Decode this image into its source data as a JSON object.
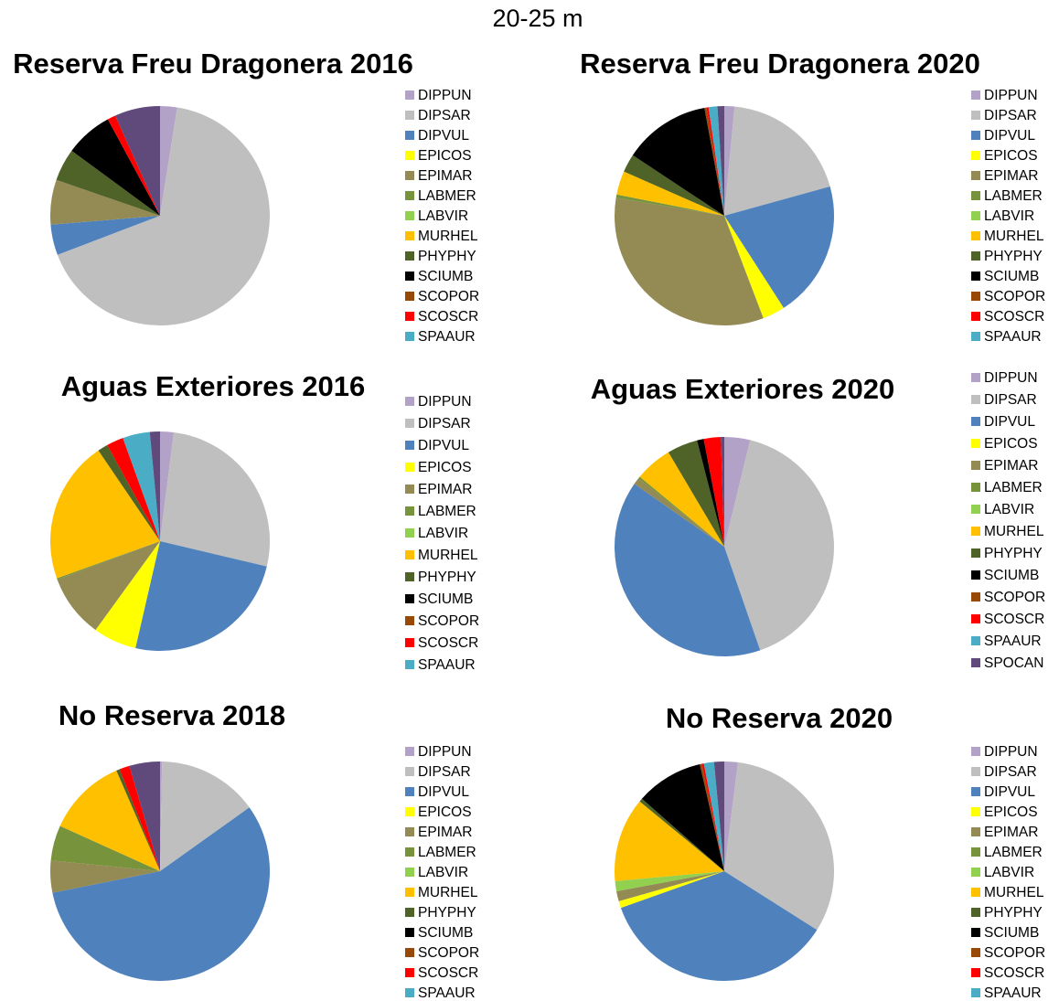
{
  "title": "20-25 m",
  "chart_data": [
    {
      "type": "pie",
      "title": "Reserva Freu Dragonera 2016",
      "categories": [
        "DIPPUN",
        "DIPSAR",
        "DIPVUL",
        "EPICOS",
        "EPIMAR",
        "LABMER",
        "LABVIR",
        "MURHEL",
        "PHYPHY",
        "SCIUMB",
        "SCOPOR",
        "SCOSCR",
        "SPAAUR",
        null
      ],
      "values": [
        2.5,
        66.7,
        4.5,
        0,
        6.6,
        0,
        0,
        0,
        4.8,
        7,
        0,
        1.2,
        0,
        6.7
      ],
      "colors": [
        "#b3a2c7",
        "#bfbfbf",
        "#4f81bd",
        "#ffff00",
        "#948a54",
        "#77933c",
        "#92d050",
        "#ffc000",
        "#4f6228",
        "#000000",
        "#984807",
        "#ff0000",
        "#4bacc6",
        "#604a7b"
      ]
    },
    {
      "type": "pie",
      "title": "Reserva Freu Dragonera 2020",
      "categories": [
        "DIPPUN",
        "DIPSAR",
        "DIPVUL",
        "EPICOS",
        "EPIMAR",
        "LABMER",
        "LABVIR",
        "MURHEL",
        "PHYPHY",
        "SCIUMB",
        "SCOPOR",
        "SCOSCR",
        "SPAAUR",
        null
      ],
      "values": [
        1.5,
        19.2,
        20.2,
        3.3,
        33.4,
        0.5,
        0,
        3.5,
        2.7,
        12.8,
        0.3,
        0.3,
        1.3,
        1
      ],
      "colors": [
        "#b3a2c7",
        "#bfbfbf",
        "#4f81bd",
        "#ffff00",
        "#948a54",
        "#77933c",
        "#92d050",
        "#ffc000",
        "#4f6228",
        "#000000",
        "#984807",
        "#ff0000",
        "#4bacc6",
        "#604a7b"
      ]
    },
    {
      "type": "pie",
      "title": "Aguas Exteriores 2016",
      "categories": [
        "DIPPUN",
        "DIPSAR",
        "DIPVUL",
        "EPICOS",
        "EPIMAR",
        "LABMER",
        "LABVIR",
        "MURHEL",
        "PHYPHY",
        "SCIUMB",
        "SCOPOR",
        "SCOSCR",
        "SPAAUR",
        null
      ],
      "values": [
        2,
        26.7,
        24.9,
        6.4,
        9.3,
        0.2,
        0,
        21,
        1.5,
        0,
        0,
        2.5,
        4,
        1.5
      ],
      "colors": [
        "#b3a2c7",
        "#bfbfbf",
        "#4f81bd",
        "#ffff00",
        "#948a54",
        "#77933c",
        "#92d050",
        "#ffc000",
        "#4f6228",
        "#000000",
        "#984807",
        "#ff0000",
        "#4bacc6",
        "#604a7b"
      ]
    },
    {
      "type": "pie",
      "title": "Aguas Exteriores 2020",
      "categories": [
        "DIPPUN",
        "DIPSAR",
        "DIPVUL",
        "EPICOS",
        "EPIMAR",
        "LABMER",
        "LABVIR",
        "MURHEL",
        "PHYPHY",
        "SCIUMB",
        "SCOPOR",
        "SCOSCR",
        "SPAAUR",
        "SPOCAN"
      ],
      "values": [
        3.8,
        40.9,
        40,
        0,
        1,
        0.3,
        0,
        5.5,
        4.5,
        1,
        0,
        2.5,
        0,
        0.5
      ],
      "colors": [
        "#b3a2c7",
        "#bfbfbf",
        "#4f81bd",
        "#ffff00",
        "#948a54",
        "#77933c",
        "#92d050",
        "#ffc000",
        "#4f6228",
        "#000000",
        "#984807",
        "#ff0000",
        "#4bacc6",
        "#604a7b"
      ]
    },
    {
      "type": "pie",
      "title": "No Reserva 2018",
      "categories": [
        "DIPPUN",
        "DIPSAR",
        "DIPVUL",
        "EPICOS",
        "EPIMAR",
        "LABMER",
        "LABVIR",
        "MURHEL",
        "PHYPHY",
        "SCIUMB",
        "SCOPOR",
        "SCOSCR",
        "SPAAUR",
        null
      ],
      "values": [
        0.3,
        14.8,
        56.6,
        0,
        4.7,
        5.2,
        0,
        11.7,
        0.5,
        0,
        0,
        1.5,
        0,
        4.5
      ],
      "colors": [
        "#b3a2c7",
        "#bfbfbf",
        "#4f81bd",
        "#ffff00",
        "#948a54",
        "#77933c",
        "#92d050",
        "#ffc000",
        "#4f6228",
        "#000000",
        "#984807",
        "#ff0000",
        "#4bacc6",
        "#604a7b"
      ]
    },
    {
      "type": "pie",
      "title": "No Reserva 2020",
      "categories": [
        "DIPPUN",
        "DIPSAR",
        "DIPVUL",
        "EPICOS",
        "EPIMAR",
        "LABMER",
        "LABVIR",
        "MURHEL",
        "PHYPHY",
        "SCIUMB",
        "SCOPOR",
        "SCOSCR",
        "SPAAUR",
        null
      ],
      "values": [
        2,
        32.2,
        35.8,
        1,
        1.5,
        0,
        1.5,
        12.5,
        0.5,
        10,
        0.3,
        0.3,
        1.5,
        1.5
      ],
      "colors": [
        "#b3a2c7",
        "#bfbfbf",
        "#4f81bd",
        "#ffff00",
        "#948a54",
        "#77933c",
        "#92d050",
        "#ffc000",
        "#4f6228",
        "#000000",
        "#984807",
        "#ff0000",
        "#4bacc6",
        "#604a7b"
      ]
    }
  ]
}
